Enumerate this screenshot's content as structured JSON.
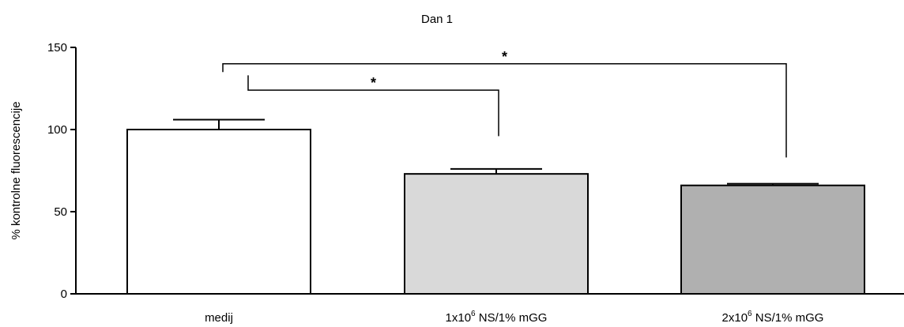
{
  "chart_data": {
    "type": "bar",
    "title": "Dan 1",
    "ylabel": "% kontrolne fluorescencije",
    "xlabel": "",
    "ylim": [
      0,
      150
    ],
    "yticks": [
      0,
      50,
      100,
      150
    ],
    "grid": false,
    "categories": [
      {
        "base": "medij",
        "sup": "",
        "rest": ""
      },
      {
        "base": "1x10",
        "sup": "6",
        "rest": " NS/1% mGG"
      },
      {
        "base": "2x10",
        "sup": "6",
        "rest": " NS/1% mGG"
      }
    ],
    "values": [
      100,
      73,
      66
    ],
    "errors": [
      6,
      3,
      1
    ],
    "colors": [
      "#ffffff",
      "#d9d9d9",
      "#b0b0b0"
    ],
    "significance": [
      {
        "from": 0,
        "to": 1,
        "label": "*",
        "level": 124
      },
      {
        "from": 0,
        "to": 2,
        "label": "*",
        "level": 140
      }
    ]
  }
}
